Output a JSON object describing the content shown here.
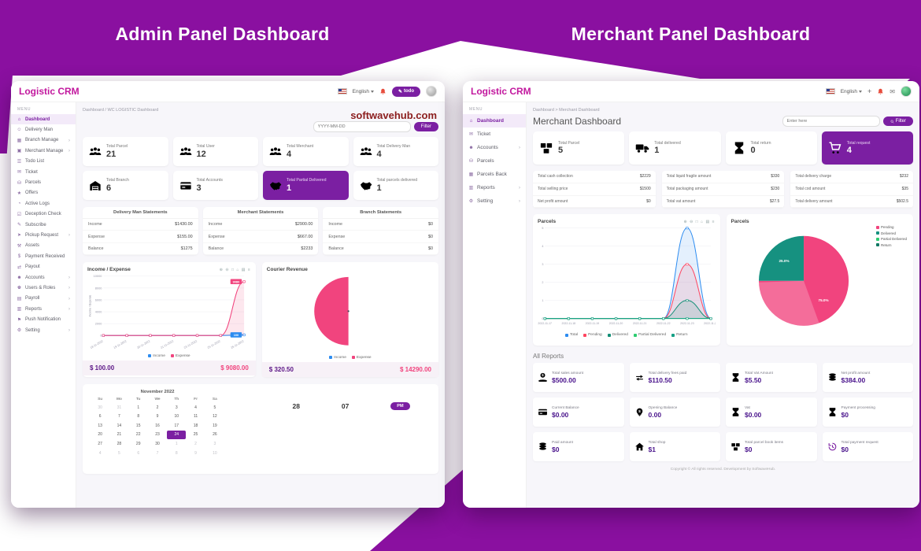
{
  "banners": {
    "admin": "Admin Panel Dashboard",
    "merchant": "Merchant Panel Dashboard"
  },
  "admin": {
    "brand": "Logistic CRM",
    "topbar": {
      "language": "English",
      "todo_label": "todo"
    },
    "menu_label": "MENU",
    "sidebar": [
      {
        "cls": "side-item active",
        "icon": "⌂",
        "label": "Dashboard",
        "arrow": ""
      },
      {
        "cls": "side-item",
        "icon": "☺",
        "label": "Delivery Man",
        "arrow": ""
      },
      {
        "cls": "side-item",
        "icon": "▦",
        "label": "Branch Manage",
        "arrow": "›"
      },
      {
        "cls": "side-item",
        "icon": "▣",
        "label": "Merchant Manage",
        "arrow": "›"
      },
      {
        "cls": "side-item",
        "icon": "☰",
        "label": "Todo List",
        "arrow": ""
      },
      {
        "cls": "side-item",
        "icon": "✉",
        "label": "Ticket",
        "arrow": ""
      },
      {
        "cls": "side-item",
        "icon": "⛁",
        "label": "Parcels",
        "arrow": ""
      },
      {
        "cls": "side-item",
        "icon": "★",
        "label": "Offers",
        "arrow": ""
      },
      {
        "cls": "side-item",
        "icon": "◔",
        "label": "Active Logs",
        "arrow": ""
      },
      {
        "cls": "side-item",
        "icon": "☑",
        "label": "Deception Check",
        "arrow": ""
      },
      {
        "cls": "side-item",
        "icon": "✎",
        "label": "Subscribe",
        "arrow": ""
      },
      {
        "cls": "side-item",
        "icon": "➤",
        "label": "Pickup Request",
        "arrow": "›"
      },
      {
        "cls": "side-item",
        "icon": "⚒",
        "label": "Assets",
        "arrow": ""
      },
      {
        "cls": "side-item",
        "icon": "$",
        "label": "Payment Received",
        "arrow": ""
      },
      {
        "cls": "side-item",
        "icon": "⇄",
        "label": "Payout",
        "arrow": ""
      },
      {
        "cls": "side-item",
        "icon": "☻",
        "label": "Accounts",
        "arrow": "›"
      },
      {
        "cls": "side-item",
        "icon": "♚",
        "label": "Users & Roles",
        "arrow": "›"
      },
      {
        "cls": "side-item",
        "icon": "▤",
        "label": "Payroll",
        "arrow": "›"
      },
      {
        "cls": "side-item",
        "icon": "▥",
        "label": "Reports",
        "arrow": "›"
      },
      {
        "cls": "side-item",
        "icon": "⚑",
        "label": "Push Notification",
        "arrow": ""
      },
      {
        "cls": "side-item",
        "icon": "⚙",
        "label": "Setting",
        "arrow": "›"
      }
    ],
    "breadcrumb": "Dashboard / WC LOGISTIC Dashboard",
    "watermark": "softwavehub.com",
    "filter": {
      "placeholder": "YYYY-MM-DD",
      "button": "Filter"
    },
    "stats": [
      {
        "cls": "stat",
        "icon": "#i-users",
        "label": "Total Parcel",
        "value": "21"
      },
      {
        "cls": "stat",
        "icon": "#i-users",
        "label": "Total User",
        "value": "12"
      },
      {
        "cls": "stat",
        "icon": "#i-users",
        "label": "Total Merchant",
        "value": "4"
      },
      {
        "cls": "stat",
        "icon": "#i-users",
        "label": "Total Delivery Man",
        "value": "4"
      },
      {
        "cls": "stat",
        "icon": "#i-garage",
        "label": "Total Branch",
        "value": "6"
      },
      {
        "cls": "stat",
        "icon": "#i-wallet",
        "label": "Total Accounts",
        "value": "3"
      },
      {
        "cls": "stat primary",
        "icon": "#i-handshake",
        "label": "Total Partial Delivered",
        "value": "1"
      },
      {
        "cls": "stat",
        "icon": "#i-handshake",
        "label": "Total parcels delivered",
        "value": "1"
      }
    ],
    "statements": [
      {
        "title": "Delivery Man Statements",
        "rows": [
          {
            "label": "Income",
            "value": "$1430.00"
          },
          {
            "label": "Expense",
            "value": "$155.00"
          },
          {
            "label": "Balance",
            "value": "$1275"
          }
        ]
      },
      {
        "title": "Merchant Statements",
        "rows": [
          {
            "label": "Income",
            "value": "$2900.00"
          },
          {
            "label": "Expense",
            "value": "$667.00"
          },
          {
            "label": "Balance",
            "value": "$2233"
          }
        ]
      },
      {
        "title": "Branch Statements",
        "rows": [
          {
            "label": "Income",
            "value": "$0"
          },
          {
            "label": "Expense",
            "value": "$0"
          },
          {
            "label": "Balance",
            "value": "$0"
          }
        ]
      }
    ],
    "chart_toolbar": "⊕ ⊖ □ ⌂ ▤ ≡",
    "calendar": {
      "month": "November 2022",
      "dow": [
        "Su",
        "Mo",
        "Tu",
        "We",
        "Th",
        "Fr",
        "Sa"
      ],
      "cells": [
        {
          "d": "30",
          "cls": "cc m"
        },
        {
          "d": "31",
          "cls": "cc m"
        },
        {
          "d": "1",
          "cls": "cc"
        },
        {
          "d": "2",
          "cls": "cc"
        },
        {
          "d": "3",
          "cls": "cc"
        },
        {
          "d": "4",
          "cls": "cc"
        },
        {
          "d": "5",
          "cls": "cc"
        },
        {
          "d": "6",
          "cls": "cc"
        },
        {
          "d": "7",
          "cls": "cc"
        },
        {
          "d": "8",
          "cls": "cc"
        },
        {
          "d": "9",
          "cls": "cc"
        },
        {
          "d": "10",
          "cls": "cc"
        },
        {
          "d": "11",
          "cls": "cc"
        },
        {
          "d": "12",
          "cls": "cc"
        },
        {
          "d": "13",
          "cls": "cc"
        },
        {
          "d": "14",
          "cls": "cc"
        },
        {
          "d": "15",
          "cls": "cc"
        },
        {
          "d": "16",
          "cls": "cc"
        },
        {
          "d": "17",
          "cls": "cc"
        },
        {
          "d": "18",
          "cls": "cc"
        },
        {
          "d": "19",
          "cls": "cc"
        },
        {
          "d": "20",
          "cls": "cc"
        },
        {
          "d": "21",
          "cls": "cc"
        },
        {
          "d": "22",
          "cls": "cc"
        },
        {
          "d": "23",
          "cls": "cc"
        },
        {
          "d": "24",
          "cls": "cc sel"
        },
        {
          "d": "25",
          "cls": "cc"
        },
        {
          "d": "26",
          "cls": "cc"
        },
        {
          "d": "27",
          "cls": "cc"
        },
        {
          "d": "28",
          "cls": "cc"
        },
        {
          "d": "29",
          "cls": "cc"
        },
        {
          "d": "30",
          "cls": "cc"
        },
        {
          "d": "1",
          "cls": "cc m"
        },
        {
          "d": "2",
          "cls": "cc m"
        },
        {
          "d": "3",
          "cls": "cc m"
        },
        {
          "d": "4",
          "cls": "cc m"
        },
        {
          "d": "5",
          "cls": "cc m"
        },
        {
          "d": "6",
          "cls": "cc m"
        },
        {
          "d": "7",
          "cls": "cc m"
        },
        {
          "d": "8",
          "cls": "cc m"
        },
        {
          "d": "9",
          "cls": "cc m"
        },
        {
          "d": "10",
          "cls": "cc m"
        }
      ],
      "clock": {
        "h": "28",
        "m": "07",
        "ampm": "PM"
      }
    }
  },
  "merchant": {
    "brand": "Logistic CRM",
    "topbar": {
      "language": "English",
      "add": "+",
      "mail": "✉"
    },
    "menu_label": "MENU",
    "sidebar": [
      {
        "cls": "side-item active",
        "icon": "⌂",
        "label": "Dashboard",
        "arrow": ""
      },
      {
        "cls": "side-item",
        "icon": "✉",
        "label": "Ticket",
        "arrow": ""
      },
      {
        "cls": "side-item",
        "icon": "☻",
        "label": "Accounts",
        "arrow": "›"
      },
      {
        "cls": "side-item",
        "icon": "⛁",
        "label": "Parcels",
        "arrow": ""
      },
      {
        "cls": "side-item",
        "icon": "▦",
        "label": "Parcels Back",
        "arrow": ""
      },
      {
        "cls": "side-item",
        "icon": "▥",
        "label": "Reports",
        "arrow": "›"
      },
      {
        "cls": "side-item",
        "icon": "⚙",
        "label": "Setting",
        "arrow": "›"
      }
    ],
    "breadcrumb": "Dashboard > Merchant Dashboard",
    "title": "Merchant Dashboard",
    "filter": {
      "placeholder": "Enter here",
      "button": "Filter"
    },
    "stats": [
      {
        "cls": "stat",
        "icon": "#i-box",
        "label": "Total Parcel",
        "value": "5"
      },
      {
        "cls": "stat",
        "icon": "#i-truck",
        "label": "Total delivered",
        "value": "1"
      },
      {
        "cls": "stat",
        "icon": "#i-hourglass",
        "label": "Total return",
        "value": "0"
      },
      {
        "cls": "stat primary",
        "icon": "#i-cart",
        "label": "Total request",
        "value": "4"
      }
    ],
    "info_cards": [
      {
        "rows": [
          {
            "label": "Total cash collection",
            "value": "$2229"
          },
          {
            "label": "Total selling price",
            "value": "$1500"
          },
          {
            "label": "Net profit amount",
            "value": "$0"
          }
        ]
      },
      {
        "rows": [
          {
            "label": "Total liquid fragile amount",
            "value": "$330"
          },
          {
            "label": "Total packaging amount",
            "value": "$230"
          },
          {
            "label": "Total vat amount",
            "value": "$27.5"
          }
        ]
      },
      {
        "rows": [
          {
            "label": "Total delivery charge",
            "value": "$232"
          },
          {
            "label": "Total cod amount",
            "value": "$35"
          },
          {
            "label": "Total delivery amount",
            "value": "$502.5"
          }
        ]
      }
    ],
    "chart_toolbar": "⊕ ⊖ □ ⌂ ▤ ≡",
    "reports_label": "All Reports",
    "reports": [
      {
        "icon": "#i-hand-dollar",
        "label": "Total sales amount",
        "value": "$500.00"
      },
      {
        "icon": "#i-exchange",
        "label": "Total delivery fees paid",
        "value": "$110.50"
      },
      {
        "icon": "#i-hourglass",
        "label": "Total Vat Amount",
        "value": "$5.50"
      },
      {
        "icon": "#i-coins",
        "label": "Net profit amount",
        "value": "$384.00"
      },
      {
        "icon": "#i-wallet",
        "label": "Current Balance",
        "value": "$0.00"
      },
      {
        "icon": "#i-badge-dollar",
        "label": "Opening Balance",
        "value": "0.00"
      },
      {
        "icon": "#i-hourglass",
        "label": "Vat",
        "value": "$0.00"
      },
      {
        "icon": "#i-hourglass",
        "label": "Payment processing",
        "value": "$0"
      },
      {
        "icon": "#i-coins",
        "label": "Paid amount",
        "value": "$0"
      },
      {
        "icon": "#i-home",
        "label": "Total shop",
        "value": "$1"
      },
      {
        "icon": "#i-box",
        "label": "Total parcel book items",
        "value": "$0"
      },
      {
        "icon": "#i-history",
        "label": "Total payment request",
        "value": "$0"
      }
    ],
    "footer": "Copyright © All rights reserved. Development by SoftwaveHub."
  },
  "chart_data": [
    {
      "name": "admin-income-expense",
      "type": "line",
      "title": "Income / Expense",
      "ylabel": "Income / Expense",
      "x": [
        "18-11-2022",
        "19-11-2022",
        "20-11-2022",
        "21-11-2022",
        "23-11-2022",
        "25-11-2022",
        "26-11-2022"
      ],
      "ylim": [
        0,
        10000
      ],
      "yticks": [
        0,
        2000,
        4000,
        6000,
        8000,
        10000
      ],
      "grid": true,
      "series": [
        {
          "name": "Income",
          "color": "#2d8cf0",
          "values": [
            0,
            0,
            0,
            0,
            0,
            0,
            100
          ]
        },
        {
          "name": "Expense",
          "color": "#f1447e",
          "values": [
            0,
            0,
            0,
            0,
            0,
            0,
            9080
          ]
        }
      ],
      "legend_position": "bottom",
      "end_labels": true,
      "totals": {
        "income": "$ 100.00",
        "expense": "$ 9080.00"
      }
    },
    {
      "name": "admin-courier-revenue",
      "type": "pie",
      "display": "semicircle",
      "title": "Courier Revenue",
      "slices": [
        {
          "label": "Expense",
          "value": 14290.0,
          "pct": 50,
          "color": "#f1447e"
        },
        {
          "label": "Income",
          "value": 320.5,
          "pct": 50,
          "color": "#ffffff"
        }
      ],
      "legend": [
        {
          "label": "Income",
          "color": "#2d8cf0"
        },
        {
          "label": "Expense",
          "color": "#f1447e"
        }
      ],
      "legend_position": "bottom",
      "totals": {
        "income": "$ 320.50",
        "expense": "$ 14290.00"
      }
    },
    {
      "name": "merchant-parcels-line",
      "type": "line",
      "title": "Parcels",
      "x": [
        "2022-11-17",
        "2022-11-18",
        "2022-11-19",
        "2022-11-20",
        "2022-11-21",
        "2022-11-22",
        "2022-11-23",
        "2022-11-24"
      ],
      "ylim": [
        0,
        5
      ],
      "yticks": [
        0,
        1,
        2,
        3,
        4,
        5
      ],
      "grid": true,
      "series": [
        {
          "name": "Total",
          "color": "#2d8cf0",
          "values": [
            0,
            0,
            0,
            0,
            0,
            0,
            5,
            0
          ]
        },
        {
          "name": "Pending",
          "color": "#ff4560",
          "values": [
            0,
            0,
            0,
            0,
            0,
            0,
            3,
            0
          ]
        },
        {
          "name": "Delivered",
          "color": "#148f77",
          "values": [
            0,
            0,
            0,
            0,
            0,
            0,
            1,
            0
          ]
        },
        {
          "name": "Partial Delivered",
          "color": "#2ecc71",
          "values": [
            0,
            0,
            0,
            0,
            0,
            0,
            0,
            0
          ]
        },
        {
          "name": "Return",
          "color": "#16a085",
          "values": [
            0,
            0,
            0,
            0,
            0,
            0,
            0,
            0
          ]
        }
      ],
      "legend_position": "bottom"
    },
    {
      "name": "merchant-parcels-pie",
      "type": "pie",
      "title": "Parcels",
      "slices": [
        {
          "label": "Pending",
          "pct": 75.0,
          "color": "#f1447e"
        },
        {
          "label": "Delivered",
          "pct": 25.0,
          "color": "#169180"
        }
      ],
      "labels": "percent",
      "legend": [
        {
          "label": "Pending",
          "color": "#f1447e"
        },
        {
          "label": "Delivered",
          "color": "#169180"
        },
        {
          "label": "Partial Delivered",
          "color": "#2ecc71"
        },
        {
          "label": "Return",
          "color": "#117864"
        }
      ],
      "legend_position": "right"
    }
  ]
}
